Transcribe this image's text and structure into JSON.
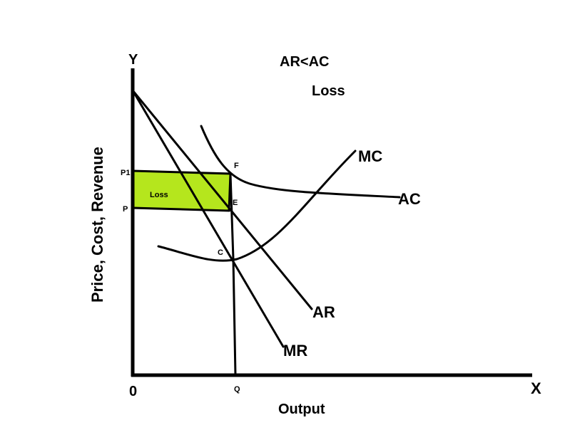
{
  "title": "AR<AC",
  "subtitle": "Loss",
  "axes": {
    "y_letter": "Y",
    "x_letter": "X",
    "origin": "0",
    "y_label": "Price, Cost, Revenue",
    "x_label": "Output"
  },
  "points": {
    "p1": "P1",
    "p": "P",
    "f": "F",
    "e": "E",
    "c": "C",
    "q": "Q"
  },
  "curves": {
    "mc": "MC",
    "ac": "AC",
    "ar": "AR",
    "mr": "MR"
  },
  "region": {
    "label": "Loss",
    "color": "#b5e61d"
  }
}
